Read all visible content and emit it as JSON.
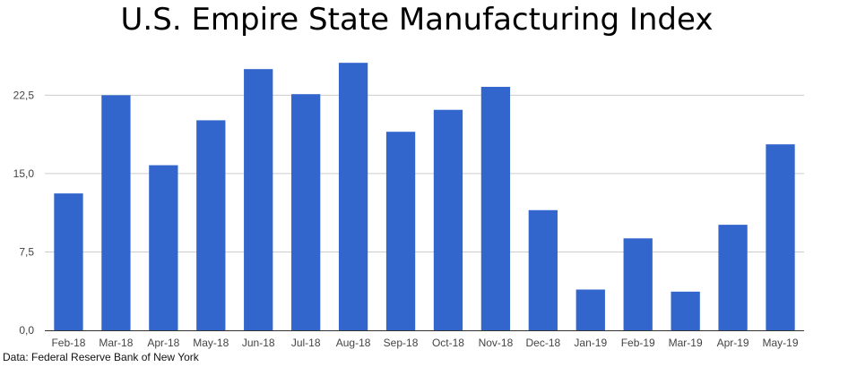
{
  "chart_data": {
    "type": "bar",
    "title": "U.S. Empire State Manufacturing Index",
    "source": "Data: Federal Reserve Bank of New York",
    "categories": [
      "Feb-18",
      "Mar-18",
      "Apr-18",
      "May-18",
      "Jun-18",
      "Jul-18",
      "Aug-18",
      "Sep-18",
      "Oct-18",
      "Nov-18",
      "Dec-18",
      "Jan-19",
      "Feb-19",
      "Mar-19",
      "Apr-19",
      "May-19"
    ],
    "values": [
      13.1,
      22.5,
      15.8,
      20.1,
      25.0,
      22.6,
      25.6,
      19.0,
      21.1,
      23.3,
      11.5,
      3.9,
      8.8,
      3.7,
      10.1,
      17.8
    ],
    "ylim": [
      0,
      27.5
    ],
    "yticks": [
      0,
      7.5,
      15,
      22.5
    ],
    "ytick_labels": [
      "0,0",
      "7,5",
      "15,0",
      "22,5"
    ],
    "xlabel": "",
    "ylabel": "",
    "grid": true,
    "bar_color": "#3366cc"
  }
}
